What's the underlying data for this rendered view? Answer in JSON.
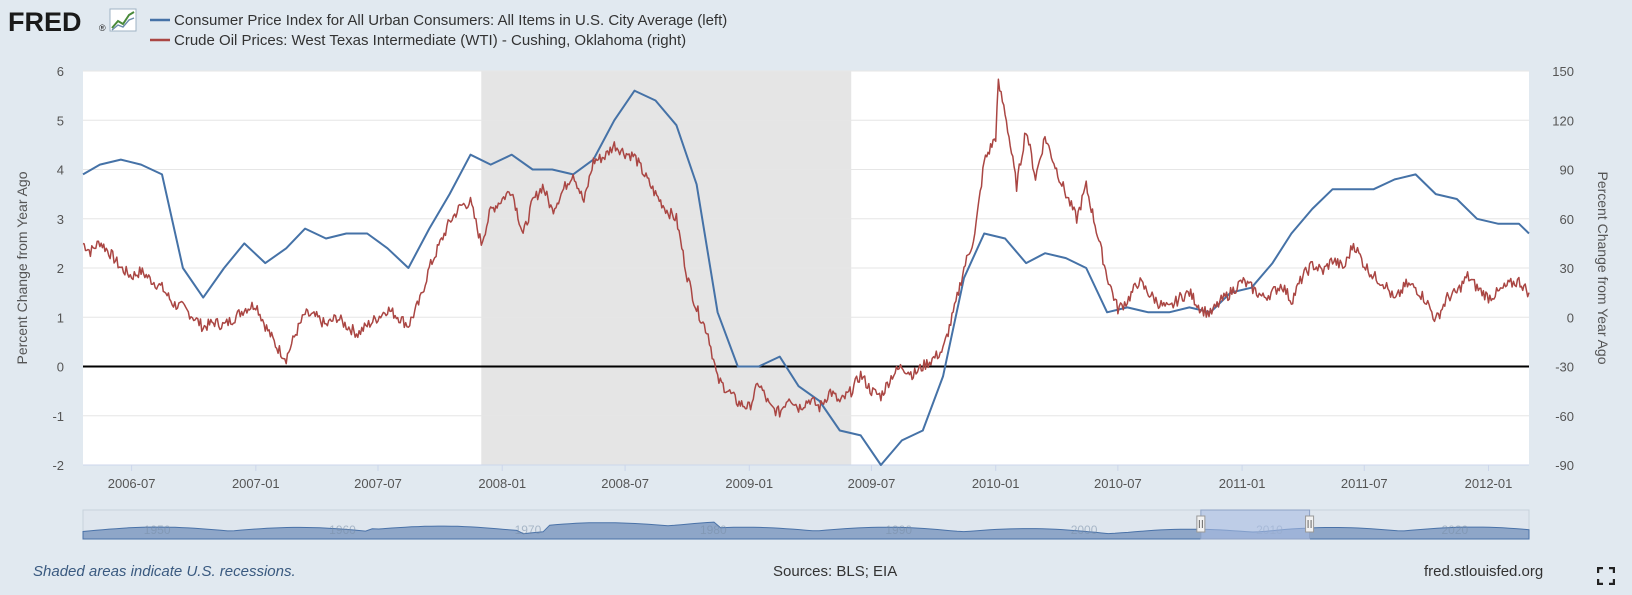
{
  "logo": {
    "text": "FRED",
    "registered": "®"
  },
  "legend": [
    {
      "label": "Consumer Price Index for All Urban Consumers: All Items in U.S. City Average (left)",
      "color": "#4572a7"
    },
    {
      "label": "Crude Oil Prices: West Texas Intermediate (WTI) - Cushing, Oklahoma (right)",
      "color": "#aa4643"
    }
  ],
  "footer": {
    "note": "Shaded areas indicate U.S. recessions.",
    "sources": "Sources: BLS; EIA",
    "site": "fred.stlouisfed.org"
  },
  "icons": {
    "expand": "fullscreen-expand-icon"
  },
  "chart_data": {
    "type": "line",
    "title": "",
    "x_range": [
      "2006-04-20",
      "2012-03-01"
    ],
    "x_ticks": [
      "2006-07",
      "2007-01",
      "2007-07",
      "2008-01",
      "2008-07",
      "2009-01",
      "2009-07",
      "2010-01",
      "2010-07",
      "2011-01",
      "2011-07",
      "2012-01"
    ],
    "y_left": {
      "label": "Percent Change from Year Ago",
      "range": [
        -2,
        6
      ],
      "ticks": [
        "-2",
        "-1",
        "0",
        "1",
        "2",
        "3",
        "4",
        "5",
        "6"
      ]
    },
    "y_right": {
      "label": "Percent Change from Year Ago",
      "range": [
        -90,
        150
      ],
      "ticks": [
        "-90",
        "-60",
        "-30",
        "0",
        "30",
        "60",
        "90",
        "120",
        "150"
      ]
    },
    "zero_line": true,
    "grid": "horizontal",
    "legend_position": "top-left",
    "recessions": [
      {
        "start": "2007-12-01",
        "end": "2009-06-01",
        "color": "#e5e5e5"
      }
    ],
    "series": [
      {
        "name": "Consumer Price Index for All Urban Consumers: All Items in U.S. City Average (left)",
        "axis": "left",
        "color": "#4572a7",
        "points": [
          [
            "2006-04-15",
            3.9
          ],
          [
            "2006-05-15",
            4.1
          ],
          [
            "2006-06-15",
            4.2
          ],
          [
            "2006-07-15",
            4.1
          ],
          [
            "2006-08-15",
            3.9
          ],
          [
            "2006-09-15",
            2.0
          ],
          [
            "2006-10-15",
            1.4
          ],
          [
            "2006-11-15",
            2.0
          ],
          [
            "2006-12-15",
            2.5
          ],
          [
            "2007-01-15",
            2.1
          ],
          [
            "2007-02-15",
            2.4
          ],
          [
            "2007-03-15",
            2.8
          ],
          [
            "2007-04-15",
            2.6
          ],
          [
            "2007-05-15",
            2.7
          ],
          [
            "2007-06-15",
            2.7
          ],
          [
            "2007-07-15",
            2.4
          ],
          [
            "2007-08-15",
            2.0
          ],
          [
            "2007-09-15",
            2.8
          ],
          [
            "2007-10-15",
            3.5
          ],
          [
            "2007-11-15",
            4.3
          ],
          [
            "2007-12-15",
            4.1
          ],
          [
            "2008-01-15",
            4.3
          ],
          [
            "2008-02-15",
            4.0
          ],
          [
            "2008-03-15",
            4.0
          ],
          [
            "2008-04-15",
            3.9
          ],
          [
            "2008-05-15",
            4.2
          ],
          [
            "2008-06-15",
            5.0
          ],
          [
            "2008-07-15",
            5.6
          ],
          [
            "2008-08-15",
            5.4
          ],
          [
            "2008-09-15",
            4.9
          ],
          [
            "2008-10-15",
            3.7
          ],
          [
            "2008-11-15",
            1.1
          ],
          [
            "2008-12-15",
            0.0
          ],
          [
            "2009-01-15",
            0.0
          ],
          [
            "2009-02-15",
            0.2
          ],
          [
            "2009-03-15",
            -0.4
          ],
          [
            "2009-04-15",
            -0.7
          ],
          [
            "2009-05-15",
            -1.3
          ],
          [
            "2009-06-15",
            -1.4
          ],
          [
            "2009-07-15",
            -2.1
          ],
          [
            "2009-08-15",
            -1.5
          ],
          [
            "2009-09-15",
            -1.3
          ],
          [
            "2009-10-15",
            -0.2
          ],
          [
            "2009-11-15",
            1.8
          ],
          [
            "2009-12-15",
            2.7
          ],
          [
            "2010-01-15",
            2.6
          ],
          [
            "2010-02-15",
            2.1
          ],
          [
            "2010-03-15",
            2.3
          ],
          [
            "2010-04-15",
            2.2
          ],
          [
            "2010-05-15",
            2.0
          ],
          [
            "2010-06-15",
            1.1
          ],
          [
            "2010-07-15",
            1.2
          ],
          [
            "2010-08-15",
            1.1
          ],
          [
            "2010-09-15",
            1.1
          ],
          [
            "2010-10-15",
            1.2
          ],
          [
            "2010-11-15",
            1.1
          ],
          [
            "2010-12-15",
            1.5
          ],
          [
            "2011-01-15",
            1.6
          ],
          [
            "2011-02-15",
            2.1
          ],
          [
            "2011-03-15",
            2.7
          ],
          [
            "2011-04-15",
            3.2
          ],
          [
            "2011-05-15",
            3.6
          ],
          [
            "2011-06-15",
            3.6
          ],
          [
            "2011-07-15",
            3.6
          ],
          [
            "2011-08-15",
            3.8
          ],
          [
            "2011-09-15",
            3.9
          ],
          [
            "2011-10-15",
            3.5
          ],
          [
            "2011-11-15",
            3.4
          ],
          [
            "2011-12-15",
            3.0
          ],
          [
            "2012-01-15",
            2.9
          ],
          [
            "2012-02-15",
            2.9
          ],
          [
            "2012-03-01",
            2.7
          ]
        ]
      },
      {
        "name": "Crude Oil Prices: West Texas Intermediate (WTI) - Cushing, Oklahoma (right)",
        "axis": "right",
        "color": "#aa4643",
        "points": [
          [
            "2006-04-20",
            45
          ],
          [
            "2006-05-01",
            40
          ],
          [
            "2006-05-15",
            46
          ],
          [
            "2006-06-01",
            38
          ],
          [
            "2006-06-15",
            30
          ],
          [
            "2006-07-01",
            25
          ],
          [
            "2006-07-15",
            28
          ],
          [
            "2006-08-01",
            22
          ],
          [
            "2006-08-15",
            18
          ],
          [
            "2006-09-01",
            8
          ],
          [
            "2006-09-15",
            6
          ],
          [
            "2006-10-01",
            0
          ],
          [
            "2006-10-15",
            -6
          ],
          [
            "2006-11-01",
            -3
          ],
          [
            "2006-11-15",
            -5
          ],
          [
            "2006-12-01",
            0
          ],
          [
            "2006-12-15",
            5
          ],
          [
            "2007-01-01",
            8
          ],
          [
            "2007-01-15",
            -5
          ],
          [
            "2007-02-01",
            -18
          ],
          [
            "2007-02-15",
            -25
          ],
          [
            "2007-03-01",
            -10
          ],
          [
            "2007-03-15",
            2
          ],
          [
            "2007-04-01",
            0
          ],
          [
            "2007-04-15",
            -5
          ],
          [
            "2007-05-01",
            0
          ],
          [
            "2007-05-15",
            -5
          ],
          [
            "2007-06-01",
            -10
          ],
          [
            "2007-06-15",
            -5
          ],
          [
            "2007-07-01",
            0
          ],
          [
            "2007-07-15",
            5
          ],
          [
            "2007-08-01",
            0
          ],
          [
            "2007-08-15",
            -5
          ],
          [
            "2007-09-01",
            10
          ],
          [
            "2007-09-15",
            30
          ],
          [
            "2007-10-01",
            45
          ],
          [
            "2007-10-15",
            58
          ],
          [
            "2007-11-01",
            68
          ],
          [
            "2007-11-15",
            70
          ],
          [
            "2007-12-01",
            45
          ],
          [
            "2007-12-15",
            65
          ],
          [
            "2008-01-01",
            72
          ],
          [
            "2008-01-15",
            78
          ],
          [
            "2008-02-01",
            50
          ],
          [
            "2008-02-15",
            70
          ],
          [
            "2008-03-01",
            80
          ],
          [
            "2008-03-15",
            65
          ],
          [
            "2008-04-01",
            78
          ],
          [
            "2008-04-15",
            88
          ],
          [
            "2008-05-01",
            70
          ],
          [
            "2008-05-15",
            95
          ],
          [
            "2008-06-01",
            98
          ],
          [
            "2008-06-15",
            105
          ],
          [
            "2008-07-01",
            100
          ],
          [
            "2008-07-15",
            98
          ],
          [
            "2008-08-01",
            85
          ],
          [
            "2008-08-15",
            75
          ],
          [
            "2008-09-01",
            65
          ],
          [
            "2008-09-15",
            60
          ],
          [
            "2008-10-01",
            25
          ],
          [
            "2008-10-15",
            5
          ],
          [
            "2008-11-01",
            -10
          ],
          [
            "2008-11-15",
            -38
          ],
          [
            "2008-12-01",
            -45
          ],
          [
            "2008-12-15",
            -52
          ],
          [
            "2009-01-01",
            -55
          ],
          [
            "2009-01-15",
            -40
          ],
          [
            "2009-02-01",
            -55
          ],
          [
            "2009-02-15",
            -58
          ],
          [
            "2009-03-01",
            -48
          ],
          [
            "2009-03-15",
            -55
          ],
          [
            "2009-04-01",
            -50
          ],
          [
            "2009-04-15",
            -55
          ],
          [
            "2009-05-01",
            -45
          ],
          [
            "2009-05-15",
            -52
          ],
          [
            "2009-06-01",
            -45
          ],
          [
            "2009-06-15",
            -35
          ],
          [
            "2009-07-01",
            -45
          ],
          [
            "2009-07-15",
            -48
          ],
          [
            "2009-08-01",
            -35
          ],
          [
            "2009-08-15",
            -30
          ],
          [
            "2009-09-01",
            -35
          ],
          [
            "2009-09-15",
            -30
          ],
          [
            "2009-10-01",
            -25
          ],
          [
            "2009-10-15",
            -20
          ],
          [
            "2009-11-01",
            5
          ],
          [
            "2009-11-15",
            30
          ],
          [
            "2009-12-01",
            50
          ],
          [
            "2009-12-15",
            95
          ],
          [
            "2010-01-01",
            110
          ],
          [
            "2010-01-05",
            142
          ],
          [
            "2010-01-15",
            125
          ],
          [
            "2010-02-01",
            80
          ],
          [
            "2010-02-15",
            115
          ],
          [
            "2010-03-01",
            85
          ],
          [
            "2010-03-15",
            110
          ],
          [
            "2010-04-01",
            90
          ],
          [
            "2010-04-15",
            75
          ],
          [
            "2010-05-01",
            60
          ],
          [
            "2010-05-15",
            80
          ],
          [
            "2010-06-01",
            50
          ],
          [
            "2010-06-15",
            25
          ],
          [
            "2010-07-01",
            5
          ],
          [
            "2010-07-15",
            10
          ],
          [
            "2010-08-01",
            22
          ],
          [
            "2010-08-15",
            15
          ],
          [
            "2010-09-01",
            8
          ],
          [
            "2010-09-15",
            5
          ],
          [
            "2010-10-01",
            12
          ],
          [
            "2010-10-15",
            15
          ],
          [
            "2010-11-01",
            5
          ],
          [
            "2010-11-15",
            2
          ],
          [
            "2010-12-01",
            10
          ],
          [
            "2010-12-15",
            15
          ],
          [
            "2011-01-01",
            22
          ],
          [
            "2011-01-15",
            18
          ],
          [
            "2011-02-01",
            12
          ],
          [
            "2011-02-15",
            15
          ],
          [
            "2011-03-01",
            20
          ],
          [
            "2011-03-15",
            10
          ],
          [
            "2011-04-01",
            25
          ],
          [
            "2011-04-15",
            32
          ],
          [
            "2011-05-01",
            28
          ],
          [
            "2011-05-15",
            35
          ],
          [
            "2011-06-01",
            30
          ],
          [
            "2011-06-15",
            45
          ],
          [
            "2011-07-01",
            32
          ],
          [
            "2011-07-15",
            25
          ],
          [
            "2011-08-01",
            20
          ],
          [
            "2011-08-15",
            10
          ],
          [
            "2011-09-01",
            20
          ],
          [
            "2011-09-15",
            18
          ],
          [
            "2011-10-01",
            10
          ],
          [
            "2011-10-15",
            -2
          ],
          [
            "2011-11-01",
            12
          ],
          [
            "2011-11-15",
            15
          ],
          [
            "2011-12-01",
            25
          ],
          [
            "2011-12-15",
            18
          ],
          [
            "2012-01-01",
            12
          ],
          [
            "2012-01-15",
            15
          ],
          [
            "2012-02-01",
            20
          ],
          [
            "2012-02-15",
            22
          ],
          [
            "2012-03-01",
            15
          ]
        ]
      }
    ],
    "navigator": {
      "labels": [
        "1950",
        "1960",
        "1970",
        "1980",
        "1990",
        "2000",
        "2010",
        "2020"
      ],
      "range": [
        "1946-01-01",
        "2024-01-01"
      ],
      "selection": [
        "2006-04-20",
        "2012-03-01"
      ]
    }
  }
}
